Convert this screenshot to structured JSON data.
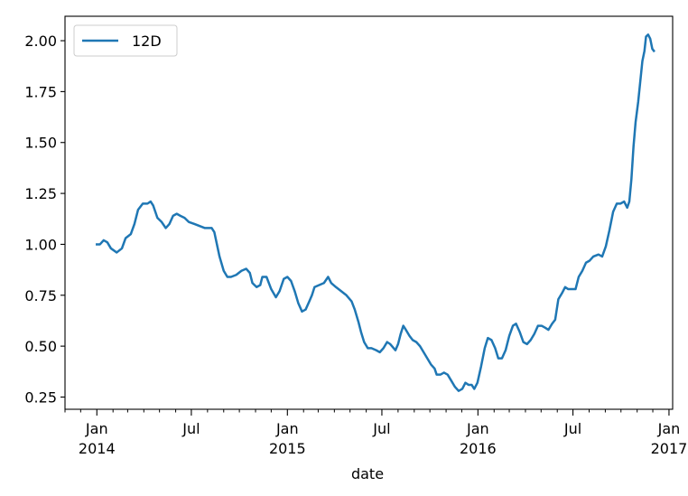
{
  "chart_data": {
    "type": "line",
    "title": "",
    "xlabel": "date",
    "ylabel": "",
    "x_range": [
      "2013-11-01",
      "2017-01-08"
    ],
    "ylim": [
      0.19,
      2.12
    ],
    "y_ticks": [
      {
        "value": 0.25,
        "label": "0.25"
      },
      {
        "value": 0.5,
        "label": "0.50"
      },
      {
        "value": 0.75,
        "label": "0.75"
      },
      {
        "value": 1.0,
        "label": "1.00"
      },
      {
        "value": 1.25,
        "label": "1.25"
      },
      {
        "value": 1.5,
        "label": "1.50"
      },
      {
        "value": 1.75,
        "label": "1.75"
      },
      {
        "value": 2.0,
        "label": "2.00"
      }
    ],
    "x_major_ticks": [
      {
        "date": "2014-01-01",
        "label": "Jan",
        "sublabel": "2014"
      },
      {
        "date": "2014-07-01",
        "label": "Jul",
        "sublabel": ""
      },
      {
        "date": "2015-01-01",
        "label": "Jan",
        "sublabel": "2015"
      },
      {
        "date": "2015-07-01",
        "label": "Jul",
        "sublabel": ""
      },
      {
        "date": "2016-01-01",
        "label": "Jan",
        "sublabel": "2016"
      },
      {
        "date": "2016-07-01",
        "label": "Jul",
        "sublabel": ""
      },
      {
        "date": "2017-01-01",
        "label": "Jan",
        "sublabel": "2017"
      }
    ],
    "x_minor_ticks": [
      "2013-11-01",
      "2013-12-01",
      "2014-02-01",
      "2014-03-01",
      "2014-04-01",
      "2014-05-01",
      "2014-06-01",
      "2014-08-01",
      "2014-09-01",
      "2014-10-01",
      "2014-11-01",
      "2014-12-01",
      "2015-02-01",
      "2015-03-01",
      "2015-04-01",
      "2015-05-01",
      "2015-06-01",
      "2015-08-01",
      "2015-09-01",
      "2015-10-01",
      "2015-11-01",
      "2015-12-01",
      "2016-02-01",
      "2016-03-01",
      "2016-04-01",
      "2016-05-01",
      "2016-06-01",
      "2016-08-01",
      "2016-09-01",
      "2016-10-01",
      "2016-11-01",
      "2016-12-01"
    ],
    "legend": "upper-left",
    "grid": false,
    "series": [
      {
        "name": "12D",
        "color": "#1f77b4",
        "points": [
          [
            "2014-01-01",
            1.0
          ],
          [
            "2014-01-07",
            1.0
          ],
          [
            "2014-01-14",
            1.02
          ],
          [
            "2014-01-21",
            1.01
          ],
          [
            "2014-01-28",
            0.98
          ],
          [
            "2014-02-08",
            0.96
          ],
          [
            "2014-02-18",
            0.98
          ],
          [
            "2014-02-25",
            1.03
          ],
          [
            "2014-03-07",
            1.05
          ],
          [
            "2014-03-14",
            1.1
          ],
          [
            "2014-03-21",
            1.17
          ],
          [
            "2014-03-30",
            1.2
          ],
          [
            "2014-04-08",
            1.2
          ],
          [
            "2014-04-14",
            1.21
          ],
          [
            "2014-04-19",
            1.19
          ],
          [
            "2014-04-27",
            1.13
          ],
          [
            "2014-05-05",
            1.11
          ],
          [
            "2014-05-13",
            1.08
          ],
          [
            "2014-05-20",
            1.1
          ],
          [
            "2014-05-27",
            1.14
          ],
          [
            "2014-06-03",
            1.15
          ],
          [
            "2014-06-10",
            1.14
          ],
          [
            "2014-06-18",
            1.13
          ],
          [
            "2014-06-26",
            1.11
          ],
          [
            "2014-07-07",
            1.1
          ],
          [
            "2014-07-17",
            1.09
          ],
          [
            "2014-07-27",
            1.08
          ],
          [
            "2014-08-04",
            1.08
          ],
          [
            "2014-08-09",
            1.08
          ],
          [
            "2014-08-14",
            1.06
          ],
          [
            "2014-08-19",
            1.0
          ],
          [
            "2014-08-24",
            0.94
          ],
          [
            "2014-09-01",
            0.87
          ],
          [
            "2014-09-08",
            0.84
          ],
          [
            "2014-09-15",
            0.84
          ],
          [
            "2014-09-25",
            0.85
          ],
          [
            "2014-10-05",
            0.87
          ],
          [
            "2014-10-14",
            0.88
          ],
          [
            "2014-10-21",
            0.86
          ],
          [
            "2014-10-26",
            0.81
          ],
          [
            "2014-11-03",
            0.79
          ],
          [
            "2014-11-10",
            0.8
          ],
          [
            "2014-11-14",
            0.84
          ],
          [
            "2014-11-22",
            0.84
          ],
          [
            "2014-12-01",
            0.78
          ],
          [
            "2014-12-10",
            0.74
          ],
          [
            "2014-12-17",
            0.77
          ],
          [
            "2014-12-25",
            0.83
          ],
          [
            "2015-01-01",
            0.84
          ],
          [
            "2015-01-08",
            0.82
          ],
          [
            "2015-01-15",
            0.77
          ],
          [
            "2015-01-22",
            0.71
          ],
          [
            "2015-01-29",
            0.67
          ],
          [
            "2015-02-05",
            0.68
          ],
          [
            "2015-02-12",
            0.72
          ],
          [
            "2015-02-17",
            0.75
          ],
          [
            "2015-02-22",
            0.79
          ],
          [
            "2015-03-03",
            0.8
          ],
          [
            "2015-03-12",
            0.81
          ],
          [
            "2015-03-20",
            0.84
          ],
          [
            "2015-03-26",
            0.81
          ],
          [
            "2015-04-04",
            0.79
          ],
          [
            "2015-04-14",
            0.77
          ],
          [
            "2015-04-24",
            0.75
          ],
          [
            "2015-05-04",
            0.72
          ],
          [
            "2015-05-10",
            0.68
          ],
          [
            "2015-05-17",
            0.62
          ],
          [
            "2015-05-22",
            0.57
          ],
          [
            "2015-05-28",
            0.52
          ],
          [
            "2015-06-04",
            0.49
          ],
          [
            "2015-06-11",
            0.49
          ],
          [
            "2015-06-20",
            0.48
          ],
          [
            "2015-06-27",
            0.47
          ],
          [
            "2015-07-04",
            0.49
          ],
          [
            "2015-07-11",
            0.52
          ],
          [
            "2015-07-17",
            0.51
          ],
          [
            "2015-07-27",
            0.48
          ],
          [
            "2015-08-01",
            0.51
          ],
          [
            "2015-08-06",
            0.56
          ],
          [
            "2015-08-11",
            0.6
          ],
          [
            "2015-08-16",
            0.58
          ],
          [
            "2015-08-23",
            0.55
          ],
          [
            "2015-08-29",
            0.53
          ],
          [
            "2015-09-05",
            0.52
          ],
          [
            "2015-09-12",
            0.5
          ],
          [
            "2015-09-19",
            0.47
          ],
          [
            "2015-09-26",
            0.44
          ],
          [
            "2015-10-03",
            0.41
          ],
          [
            "2015-10-10",
            0.39
          ],
          [
            "2015-10-14",
            0.36
          ],
          [
            "2015-10-21",
            0.36
          ],
          [
            "2015-10-28",
            0.37
          ],
          [
            "2015-11-04",
            0.36
          ],
          [
            "2015-11-11",
            0.33
          ],
          [
            "2015-11-18",
            0.3
          ],
          [
            "2015-11-25",
            0.28
          ],
          [
            "2015-12-02",
            0.29
          ],
          [
            "2015-12-08",
            0.32
          ],
          [
            "2015-12-14",
            0.31
          ],
          [
            "2015-12-20",
            0.31
          ],
          [
            "2015-12-25",
            0.29
          ],
          [
            "2015-12-31",
            0.32
          ],
          [
            "2016-01-07",
            0.4
          ],
          [
            "2016-01-14",
            0.49
          ],
          [
            "2016-01-20",
            0.54
          ],
          [
            "2016-01-27",
            0.53
          ],
          [
            "2016-02-03",
            0.49
          ],
          [
            "2016-02-09",
            0.44
          ],
          [
            "2016-02-16",
            0.44
          ],
          [
            "2016-02-23",
            0.48
          ],
          [
            "2016-03-01",
            0.55
          ],
          [
            "2016-03-08",
            0.6
          ],
          [
            "2016-03-14",
            0.61
          ],
          [
            "2016-03-21",
            0.57
          ],
          [
            "2016-03-28",
            0.52
          ],
          [
            "2016-04-04",
            0.51
          ],
          [
            "2016-04-11",
            0.53
          ],
          [
            "2016-04-18",
            0.56
          ],
          [
            "2016-04-25",
            0.6
          ],
          [
            "2016-05-02",
            0.6
          ],
          [
            "2016-05-09",
            0.59
          ],
          [
            "2016-05-15",
            0.58
          ],
          [
            "2016-05-22",
            0.61
          ],
          [
            "2016-05-28",
            0.63
          ],
          [
            "2016-06-03",
            0.73
          ],
          [
            "2016-06-10",
            0.76
          ],
          [
            "2016-06-16",
            0.79
          ],
          [
            "2016-06-22",
            0.78
          ],
          [
            "2016-06-29",
            0.78
          ],
          [
            "2016-07-06",
            0.78
          ],
          [
            "2016-07-12",
            0.84
          ],
          [
            "2016-07-19",
            0.87
          ],
          [
            "2016-07-26",
            0.91
          ],
          [
            "2016-08-02",
            0.92
          ],
          [
            "2016-08-09",
            0.94
          ],
          [
            "2016-08-19",
            0.95
          ],
          [
            "2016-08-26",
            0.94
          ],
          [
            "2016-09-02",
            0.99
          ],
          [
            "2016-09-09",
            1.07
          ],
          [
            "2016-09-16",
            1.16
          ],
          [
            "2016-09-23",
            1.2
          ],
          [
            "2016-09-30",
            1.2
          ],
          [
            "2016-10-07",
            1.21
          ],
          [
            "2016-10-13",
            1.18
          ],
          [
            "2016-10-17",
            1.21
          ],
          [
            "2016-10-21",
            1.32
          ],
          [
            "2016-10-25",
            1.48
          ],
          [
            "2016-10-29",
            1.6
          ],
          [
            "2016-11-03",
            1.7
          ],
          [
            "2016-11-07",
            1.8
          ],
          [
            "2016-11-11",
            1.9
          ],
          [
            "2016-11-15",
            1.95
          ],
          [
            "2016-11-18",
            2.02
          ],
          [
            "2016-11-22",
            2.03
          ],
          [
            "2016-11-26",
            2.01
          ],
          [
            "2016-11-30",
            1.96
          ],
          [
            "2016-12-03",
            1.95
          ]
        ]
      }
    ]
  }
}
